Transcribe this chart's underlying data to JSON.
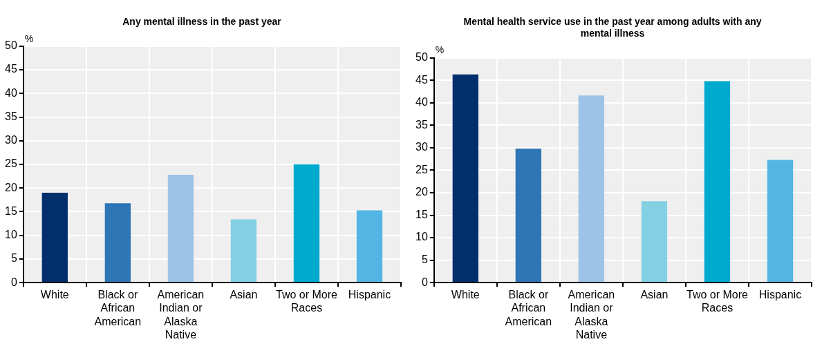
{
  "chart_data": [
    {
      "type": "bar",
      "title": "Any mental illness in the past year",
      "ylabel": "%",
      "categories": [
        "White",
        "Black or African American",
        "American Indian or Alaska Native",
        "Asian",
        "Two or More Races",
        "Hispanic"
      ],
      "values": [
        19,
        16.8,
        22.8,
        13.4,
        25,
        15.3
      ],
      "colors": [
        "#002f6c",
        "#2e75b6",
        "#9dc3e6",
        "#83d0e3",
        "#00a9ce",
        "#52b5e4"
      ],
      "ylim": [
        0,
        50
      ],
      "yticks": [
        0,
        5,
        10,
        15,
        20,
        25,
        30,
        35,
        40,
        45,
        50
      ],
      "grid": true
    },
    {
      "type": "bar",
      "title": "Mental health service use in the past year among adults with any mental illness",
      "ylabel": "%",
      "categories": [
        "White",
        "Black or African American",
        "American Indian or Alaska Native",
        "Asian",
        "Two or More Races",
        "Hispanic"
      ],
      "values": [
        46.3,
        29.8,
        41.6,
        18.1,
        44.8,
        27.3
      ],
      "colors": [
        "#002f6c",
        "#2e75b6",
        "#9dc3e6",
        "#83d0e3",
        "#00a9ce",
        "#52b5e4"
      ],
      "ylim": [
        0,
        50
      ],
      "yticks": [
        0,
        5,
        10,
        15,
        20,
        25,
        30,
        35,
        40,
        45,
        50
      ],
      "grid": true
    }
  ]
}
